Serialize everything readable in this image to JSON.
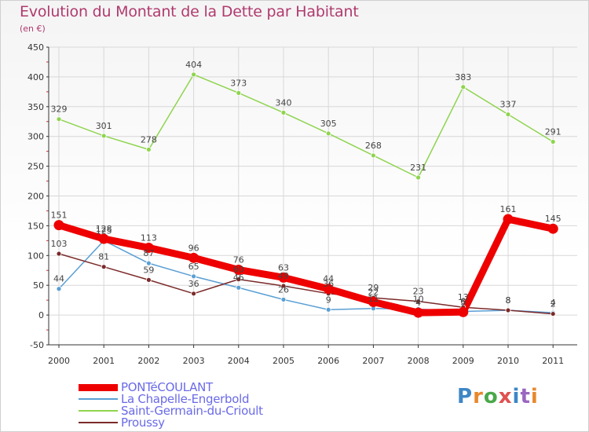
{
  "chart_data": {
    "type": "line",
    "title": "Evolution du Montant de la Dette par Habitant",
    "subtitle": "(en €)",
    "ylim": [
      -50,
      450
    ],
    "yticks": [
      -50,
      0,
      50,
      100,
      150,
      200,
      250,
      300,
      350,
      400,
      450
    ],
    "categories": [
      "2000",
      "2001",
      "2002",
      "2003",
      "2004",
      "2005",
      "2006",
      "2007",
      "2008",
      "2009",
      "2010",
      "2011"
    ],
    "series": [
      {
        "name": "PONTéCOULANT",
        "color": "#ee0000",
        "values": [
          151,
          128,
          113,
          96,
          76,
          63,
          44,
          22,
          4,
          5,
          161,
          145
        ],
        "labels": [
          "151",
          "128",
          "113",
          "96",
          "76",
          "63",
          "44",
          "22",
          "4",
          "5",
          "161",
          "145"
        ]
      },
      {
        "name": "La Chapelle-Engerbold",
        "color": "#5a9fd4",
        "values": [
          44,
          125,
          87,
          65,
          46,
          26,
          9,
          11,
          10,
          6,
          8,
          4
        ],
        "labels": [
          "44",
          "125",
          "87",
          "65",
          "46",
          "26",
          "9",
          "11",
          "10",
          "6",
          "8",
          "4"
        ]
      },
      {
        "name": "Saint-Germain-du-Crioult",
        "color": "#8fd44f",
        "values": [
          329,
          301,
          278,
          404,
          373,
          340,
          305,
          268,
          231,
          383,
          337,
          291
        ],
        "labels": [
          "329",
          "301",
          "278",
          "404",
          "373",
          "340",
          "305",
          "268",
          "231",
          "383",
          "337",
          "291"
        ]
      },
      {
        "name": "Proussy",
        "color": "#7b2a2a",
        "values": [
          103,
          81,
          59,
          36,
          60,
          49,
          36,
          29,
          23,
          13,
          8,
          2
        ],
        "labels": [
          "103",
          "81",
          "59",
          "36",
          "60",
          "49",
          "36",
          "29",
          "23",
          "13",
          "8",
          "2"
        ]
      }
    ]
  },
  "logo": {
    "text": "Proxiti",
    "colors": [
      "#3d86c6",
      "#e8882c",
      "#4aa84a",
      "#e05050",
      "#3d86c6",
      "#9a66c0",
      "#e8882c"
    ]
  }
}
